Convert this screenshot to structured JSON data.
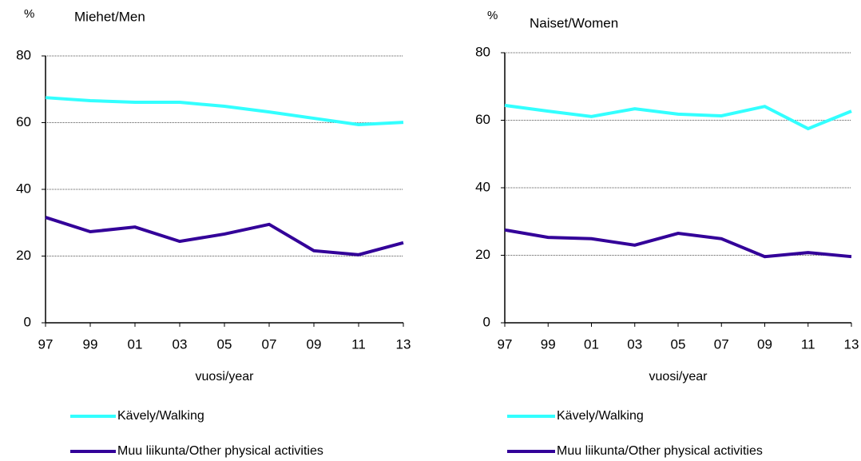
{
  "chart_data": [
    {
      "type": "line",
      "title": "Miehet/Men",
      "ylabel": "%",
      "xlabel": "vuosi/year",
      "categories": [
        "97",
        "99",
        "01",
        "03",
        "05",
        "07",
        "09",
        "11",
        "13"
      ],
      "series": [
        {
          "name": "Kävely/Walking",
          "color": "#33ffff",
          "values": [
            67.5,
            66.6,
            66.1,
            66.1,
            64.9,
            63.2,
            61.3,
            59.4,
            60.1
          ]
        },
        {
          "name": "Muu liikunta/Other physical activities",
          "color": "#330099",
          "values": [
            31.6,
            27.3,
            28.7,
            24.4,
            26.6,
            29.5,
            21.6,
            20.4,
            24.0
          ]
        }
      ],
      "ylim": [
        0,
        80
      ],
      "yticks": [
        0,
        20,
        40,
        60,
        80
      ],
      "grid": true
    },
    {
      "type": "line",
      "title": "Naiset/Women",
      "ylabel": "%",
      "xlabel": "vuosi/year",
      "categories": [
        "97",
        "99",
        "01",
        "03",
        "05",
        "07",
        "09",
        "11",
        "13"
      ],
      "series": [
        {
          "name": "Kävely/Walking",
          "color": "#33ffff",
          "values": [
            64.4,
            62.7,
            61.1,
            63.4,
            61.8,
            61.3,
            64.1,
            57.5,
            62.7
          ]
        },
        {
          "name": "Muu liikunta/Other physical activities",
          "color": "#330099",
          "values": [
            27.5,
            25.3,
            24.9,
            23.0,
            26.5,
            24.9,
            19.6,
            20.8,
            19.6
          ]
        }
      ],
      "ylim": [
        0,
        80
      ],
      "yticks": [
        0,
        20,
        40,
        60,
        80
      ],
      "grid": true
    }
  ]
}
